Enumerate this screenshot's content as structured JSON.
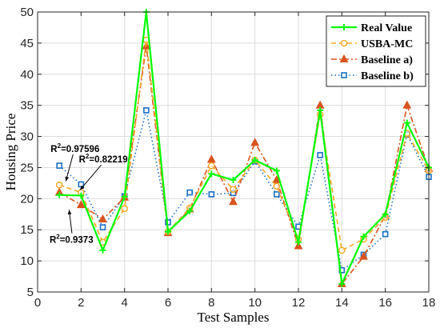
{
  "chart_data": {
    "type": "line",
    "xlabel": "Test Samples",
    "ylabel": "Housing Price",
    "xlim": [
      0,
      18
    ],
    "ylim": [
      5,
      50
    ],
    "xticks": [
      0,
      2,
      4,
      6,
      8,
      10,
      12,
      14,
      16,
      18
    ],
    "yticks": [
      5,
      10,
      15,
      20,
      25,
      30,
      35,
      40,
      45,
      50
    ],
    "grid": true,
    "legend_position": "top-right",
    "x": [
      1,
      2,
      3,
      4,
      5,
      6,
      7,
      8,
      9,
      10,
      11,
      12,
      13,
      14,
      15,
      16,
      17,
      18
    ],
    "series": [
      {
        "name": "Real Value",
        "color": "#00ff00",
        "style": "solid",
        "marker": "plus",
        "values": [
          20.6,
          20.5,
          11.7,
          20.3,
          50.0,
          14.7,
          18.0,
          24.0,
          23.0,
          26.2,
          24.5,
          13.0,
          34.2,
          6.3,
          13.9,
          17.5,
          32.2,
          25.0
        ]
      },
      {
        "name": "USBA-MC",
        "color": "#f5a623",
        "style": "dashed",
        "marker": "circle",
        "values": [
          22.2,
          21.0,
          13.0,
          18.4,
          45.5,
          14.7,
          18.5,
          25.3,
          21.5,
          26.2,
          22.0,
          13.5,
          33.5,
          11.7,
          13.5,
          17.0,
          30.5,
          24.5
        ]
      },
      {
        "name": "Baseline a)",
        "color": "#d9531e",
        "style": "dashdot",
        "marker": "triangle",
        "values": [
          21.0,
          19.0,
          16.7,
          20.2,
          44.5,
          14.5,
          18.3,
          26.3,
          19.5,
          29.0,
          23.0,
          12.4,
          35.0,
          6.3,
          10.7,
          17.3,
          35.0,
          24.8
        ]
      },
      {
        "name": "Baseline b)",
        "color": "#1a6fc4",
        "style": "dotted",
        "marker": "square",
        "values": [
          25.3,
          22.3,
          15.4,
          20.4,
          34.2,
          16.2,
          21.0,
          20.7,
          20.9,
          26.0,
          20.7,
          15.5,
          27.0,
          8.5,
          11.0,
          14.3,
          30.3,
          23.5
        ]
      }
    ],
    "annotations": [
      {
        "base": "R",
        "sup": "2",
        "rest": "=0.97596",
        "label_x": 0.6,
        "label_y": 27.5,
        "arrow_to": [
          1.3,
          22.8
        ]
      },
      {
        "base": "R",
        "sup": "2",
        "rest": "=0.82219",
        "label_x": 1.9,
        "label_y": 25.8,
        "arrow_to": [
          1.95,
          21.4
        ]
      },
      {
        "base": "R",
        "sup": "2",
        "rest": "=0.9373",
        "label_x": 0.55,
        "label_y": 12.9,
        "arrow_to": [
          1.45,
          18.2
        ]
      }
    ]
  }
}
